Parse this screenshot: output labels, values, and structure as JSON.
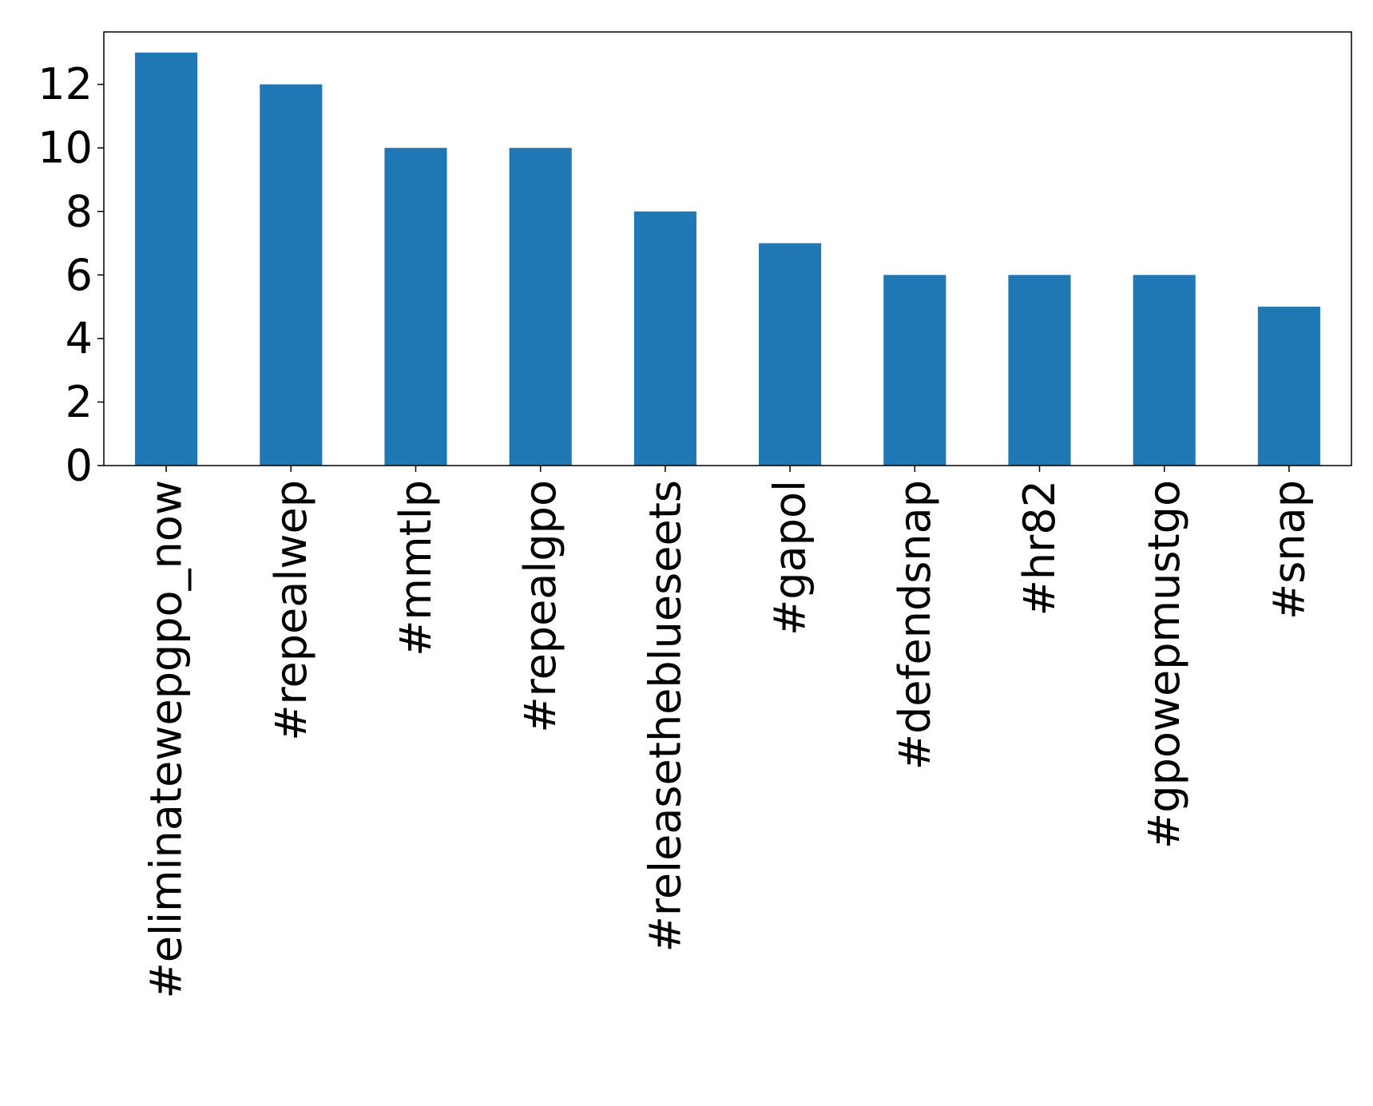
{
  "chart_data": {
    "type": "bar",
    "title": "",
    "xlabel": "",
    "ylabel": "",
    "categories": [
      "#eliminatewepgpo_now",
      "#repealwep",
      "#mmtlp",
      "#repealgpo",
      "#releasetheblueseets",
      "#gapol",
      "#defendsnap",
      "#hr82",
      "#gpowepmustgo",
      "#snap"
    ],
    "values": [
      13,
      12,
      10,
      10,
      8,
      7,
      6,
      6,
      6,
      5
    ],
    "ylim": [
      0,
      13.65
    ],
    "yticks": [
      0,
      2,
      4,
      6,
      8,
      10,
      12
    ],
    "bar_color": "#1f77b4",
    "grid": false,
    "legend": "none"
  }
}
